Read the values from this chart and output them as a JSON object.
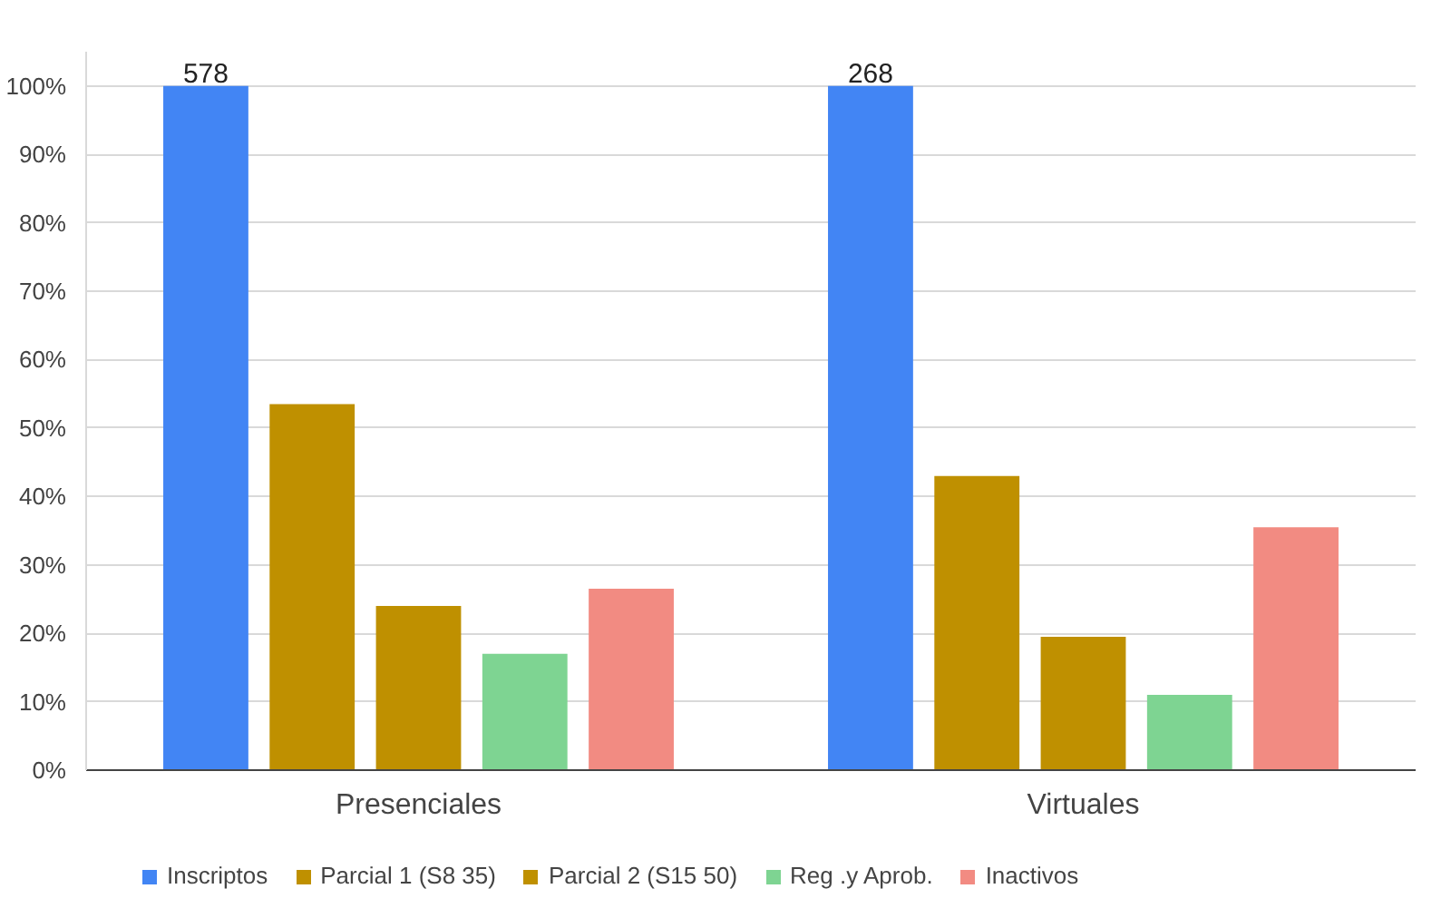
{
  "chart_data": {
    "type": "bar",
    "categories": [
      "Presenciales",
      "Virtuales"
    ],
    "series": [
      {
        "name": "Inscriptos",
        "color": "#4285f4",
        "values": [
          100,
          100
        ]
      },
      {
        "name": "Parcial 1 (S8 35)",
        "color": "#bf9000",
        "values": [
          53.5,
          43
        ]
      },
      {
        "name": "Parcial 2 (S15 50)",
        "color": "#bf9000",
        "values": [
          24,
          19.5
        ]
      },
      {
        "name": "Reg .y Aprob.",
        "color": "#7ed492",
        "values": [
          17,
          11
        ]
      },
      {
        "name": "Inactivos",
        "color": "#f28b82",
        "values": [
          26.5,
          35.5
        ]
      }
    ],
    "ylim": [
      0,
      105
    ],
    "yticks": [
      {
        "value": 0,
        "label": "0%"
      },
      {
        "value": 10,
        "label": "10%"
      },
      {
        "value": 20,
        "label": "20%"
      },
      {
        "value": 30,
        "label": "30%"
      },
      {
        "value": 40,
        "label": "40%"
      },
      {
        "value": 50,
        "label": "50%"
      },
      {
        "value": 60,
        "label": "60%"
      },
      {
        "value": 70,
        "label": "70%"
      },
      {
        "value": 80,
        "label": "80%"
      },
      {
        "value": 90,
        "label": "90%"
      },
      {
        "value": 100,
        "label": "100%"
      }
    ],
    "annotations": [
      "578",
      "268"
    ],
    "grid": "y",
    "legend": "bottom"
  }
}
